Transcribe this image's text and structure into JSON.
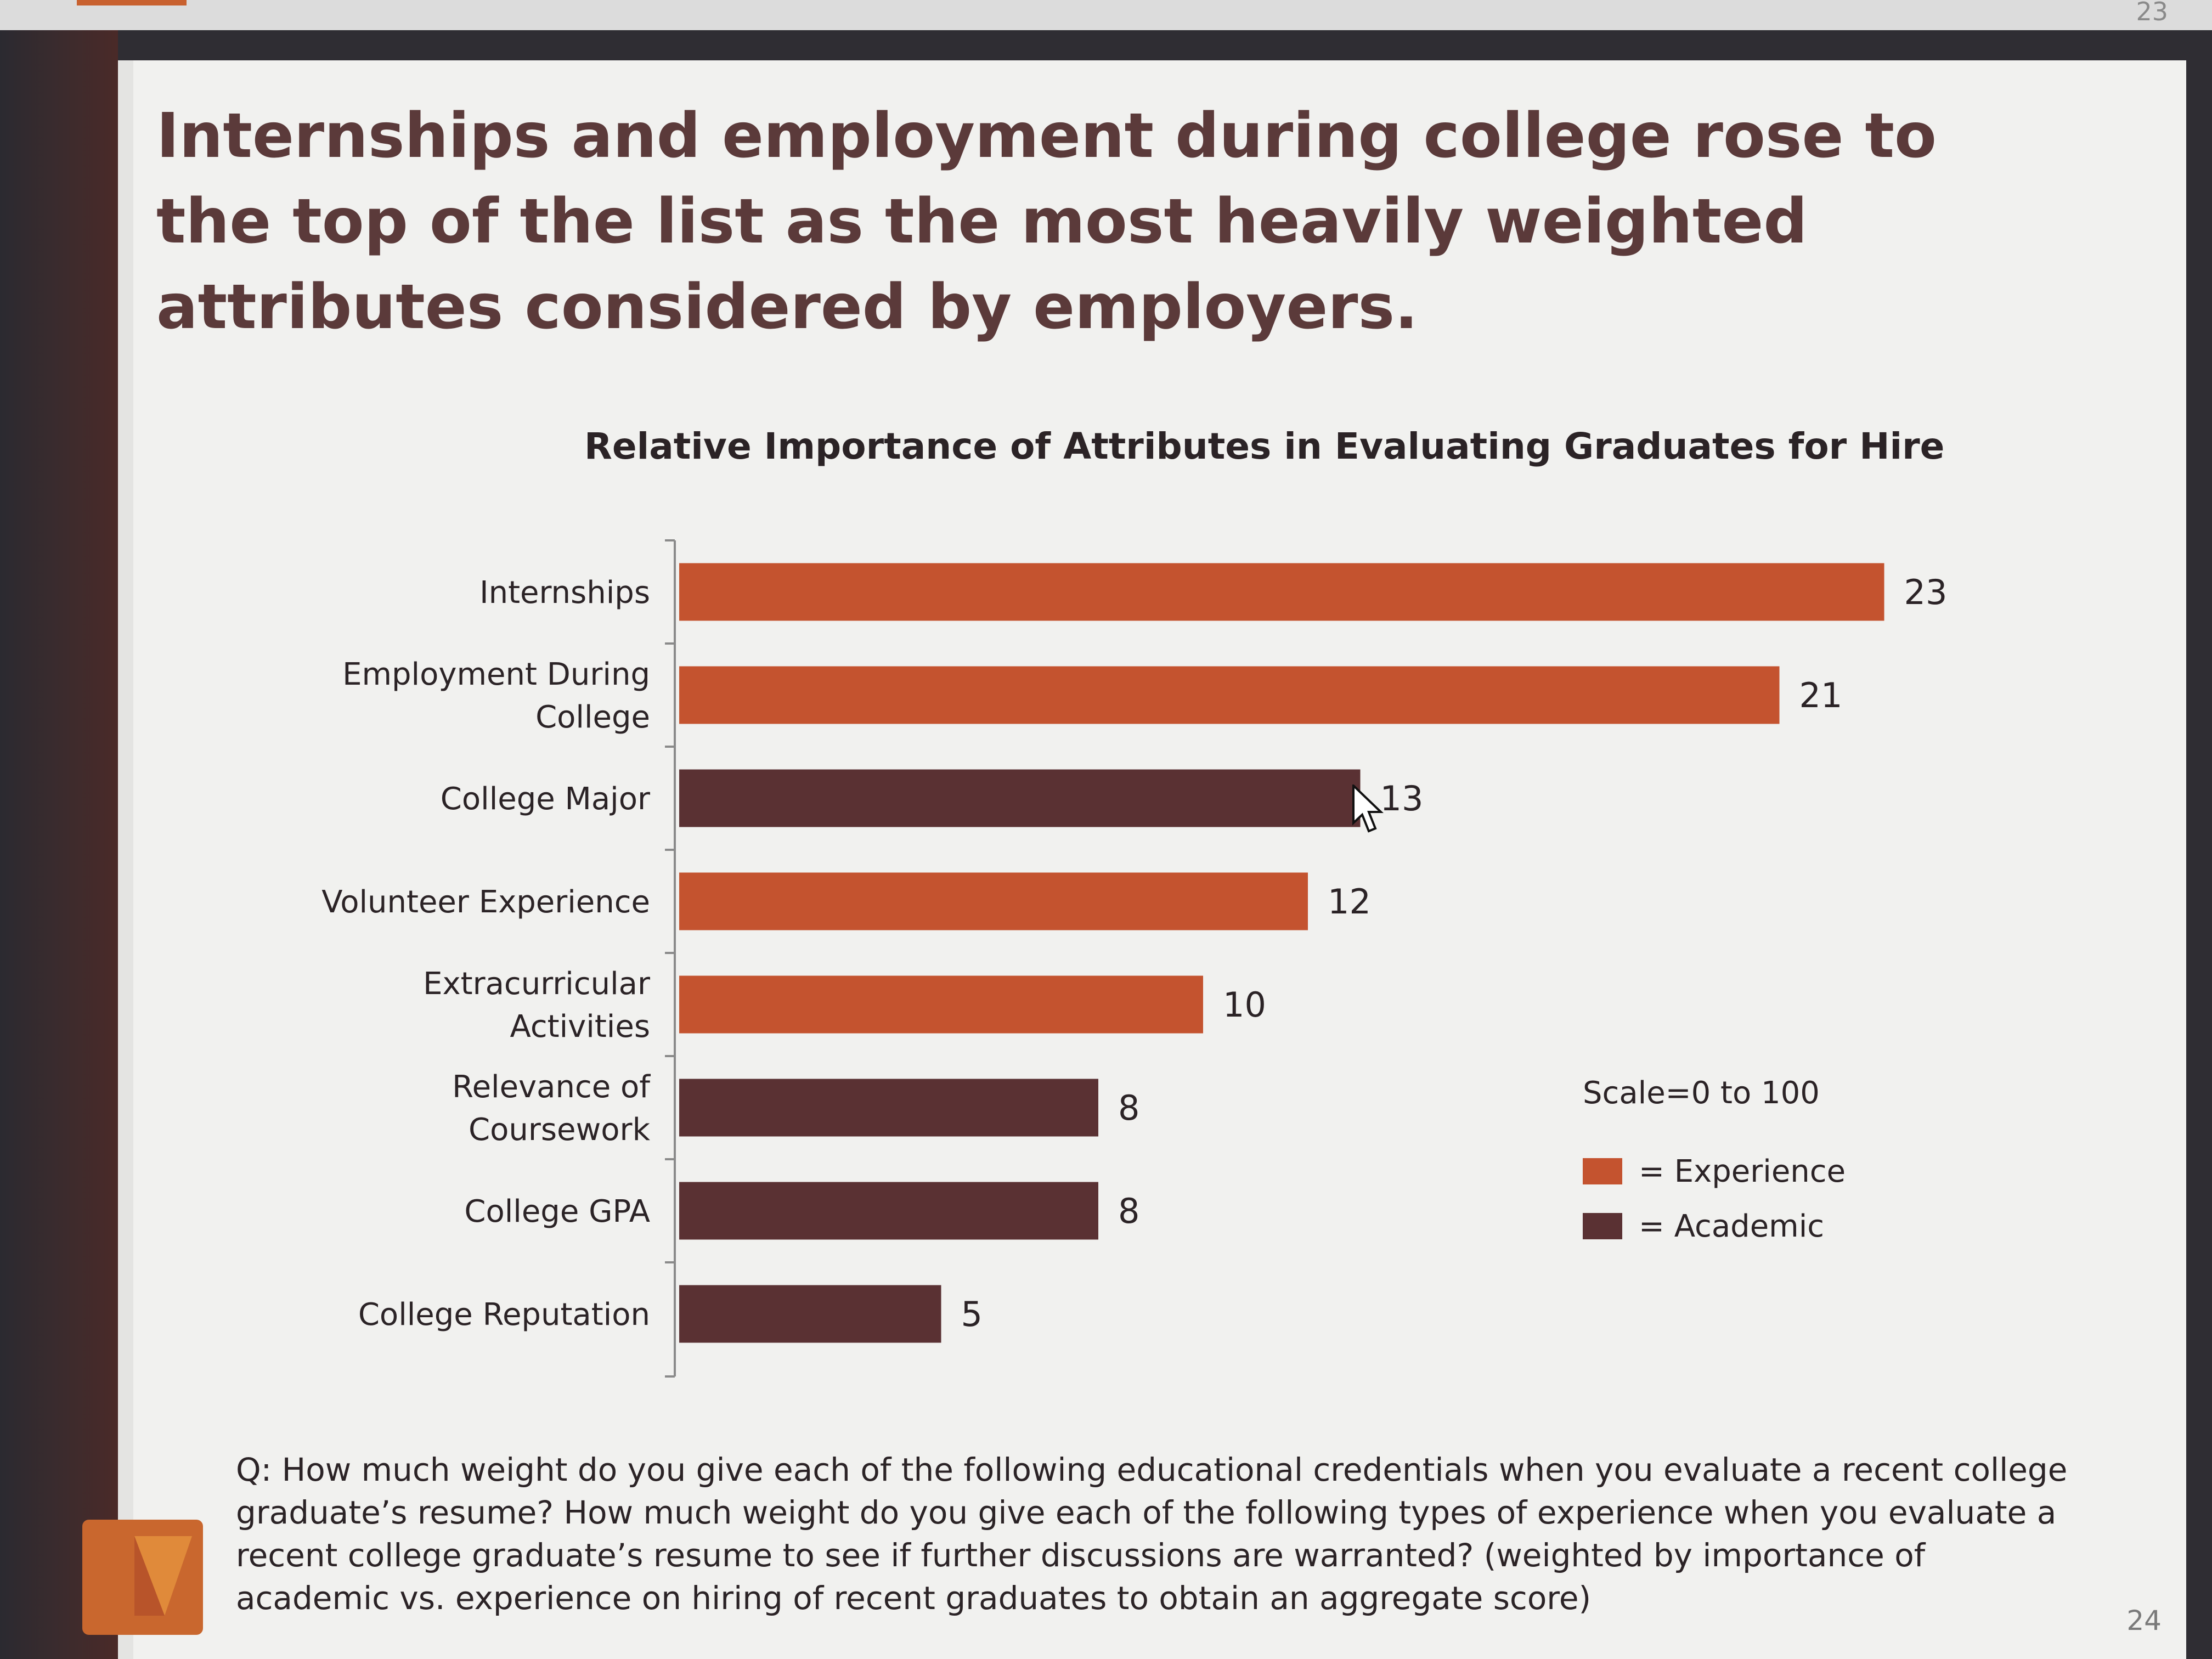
{
  "slide": {
    "title": "Internships and employment during college rose to the top of the list as the most heavily weighted attributes considered by employers.",
    "question": "Q: How much weight do you give each of the following educational credentials when you evaluate a recent college graduate’s resume? How much weight do you give each of the following types of experience when you evaluate a recent college graduate’s resume to see if further discussions are warranted? (weighted by importance of academic vs. experience on hiring of recent graduates to obtain an aggregate score)",
    "page_number": "24",
    "previous_page_number": "23"
  },
  "legend": {
    "scale_note": "Scale=0 to 100",
    "experience_label": "= Experience",
    "academic_label": "= Academic"
  },
  "colors": {
    "experience": "#c4532f",
    "academic": "#5a3133",
    "title": "#5b3a3a",
    "slide_bg": "#f1f1ef"
  },
  "chart_data": {
    "type": "bar",
    "orientation": "horizontal",
    "title": "Relative Importance of Attributes in Evaluating Graduates for Hire",
    "xlabel": "",
    "ylabel": "",
    "grid": false,
    "legend_position": "right",
    "categories": [
      [
        "Internships"
      ],
      [
        "Employment During",
        "College"
      ],
      [
        "College Major"
      ],
      [
        "Volunteer Experience"
      ],
      [
        "Extracurricular",
        "Activities"
      ],
      [
        "Relevance of",
        "Coursework"
      ],
      [
        "College GPA"
      ],
      [
        "College Reputation"
      ]
    ],
    "values": [
      23,
      21,
      13,
      12,
      10,
      8,
      8,
      5
    ],
    "value_labels": [
      "23",
      "21",
      "13",
      "12",
      "10",
      "8",
      "8",
      "5"
    ],
    "groups": [
      "experience",
      "experience",
      "academic",
      "experience",
      "experience",
      "academic",
      "academic",
      "academic"
    ],
    "series": [
      {
        "name": "Experience"
      },
      {
        "name": "Academic"
      }
    ]
  }
}
